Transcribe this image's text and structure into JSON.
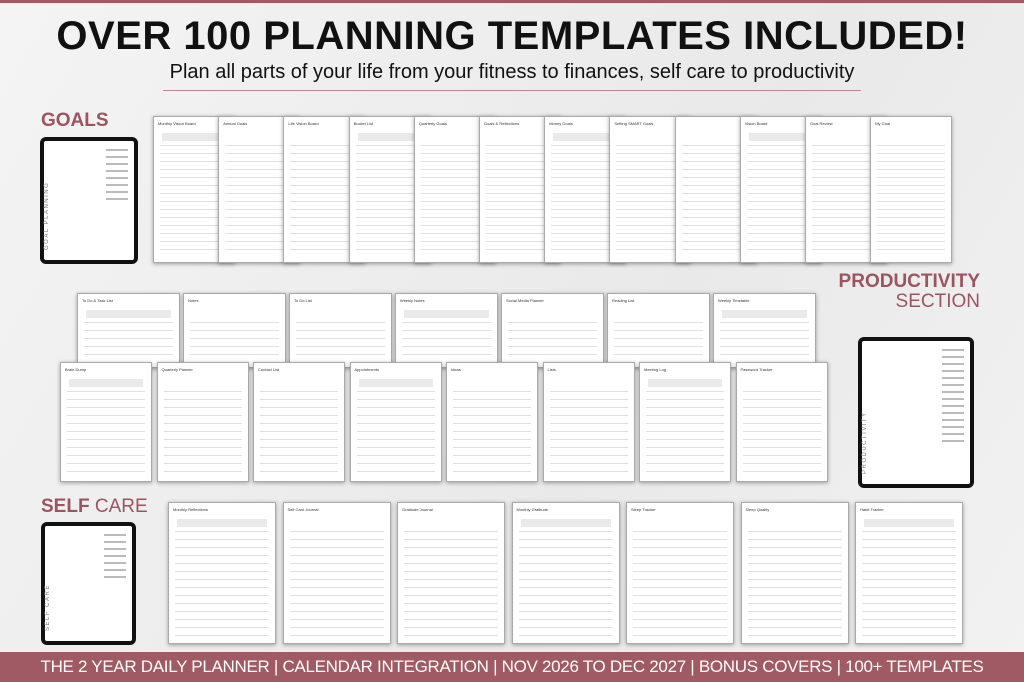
{
  "header": {
    "title": "OVER 100 PLANNING TEMPLATES INCLUDED!",
    "subtitle": "Plan all parts of your life from your fitness to finances, self care to productivity"
  },
  "sections": {
    "goals": {
      "label": "GOALS",
      "tablet_text": "GOAL PLANNING"
    },
    "productivity": {
      "label_bold": "PRODUCTIVITY",
      "label_light": "SECTION",
      "tablet_text": "PRODUCTIVITY"
    },
    "selfcare": {
      "label_bold": "SELF",
      "label_light": "CARE",
      "tablet_text": "SELF CARE"
    }
  },
  "templates": {
    "goals": [
      "Monthly Vision Board",
      "Annual Goals",
      "Life Vision Board",
      "Bucket List",
      "Quarterly Goals",
      "Goals & Reflections",
      "Money Goals",
      "Setting SMART Goals",
      "",
      "Vision Board",
      "Goal Review",
      "My Goal"
    ],
    "productivity_top": [
      "To Do & Task List",
      "Notes",
      "To Do List",
      "Weekly Notes",
      "Social Media Planner",
      "Reading List",
      "Weekly Timetable"
    ],
    "productivity_bottom": [
      "Brain Dump",
      "Quarterly Planner",
      "Contact List",
      "Appointments",
      "Ideas",
      "Lists",
      "Meeting Log",
      "Password Tracker"
    ],
    "selfcare": [
      "Monthly Reflections",
      "Self Care Journal",
      "Gratitude Journal",
      "Monthly Gratitude",
      "Sleep Tracker",
      "Sleep Quality",
      "Habit Tracker"
    ]
  },
  "footer": {
    "text": "THE 2 YEAR DAILY PLANNER  |  CALENDAR INTEGRATION  | NOV 2026 TO DEC 2027  | BONUS COVERS | 100+ TEMPLATES"
  },
  "colors": {
    "accent": "#a05a63",
    "text": "#111111"
  }
}
